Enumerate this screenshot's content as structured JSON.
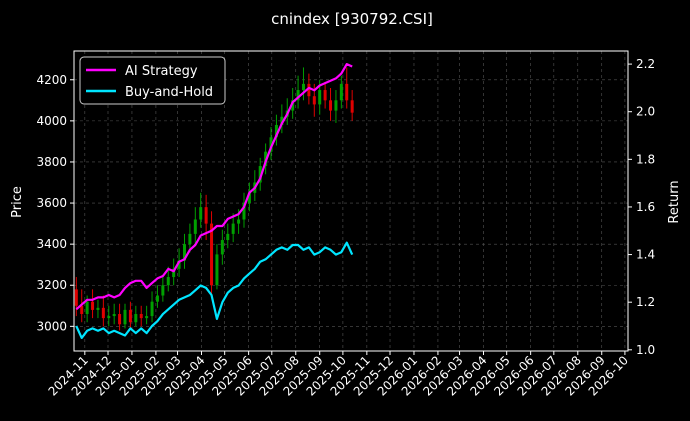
{
  "chart_data": {
    "type": "line",
    "title": "cnindex [930792.CSI]",
    "ylabel_left": "Price",
    "ylabel_right": "Return",
    "ylim_left": [
      2880,
      4340
    ],
    "ylim_right": [
      0.995,
      2.255
    ],
    "yticks_left": [
      3000,
      3200,
      3400,
      3600,
      3800,
      4000,
      4200
    ],
    "yticks_right": [
      1.0,
      1.2,
      1.4,
      1.6,
      1.8,
      2.0,
      2.2
    ],
    "ytick_labels_left": [
      "3000",
      "3200",
      "3400",
      "3600",
      "3800",
      "4000",
      "4200"
    ],
    "ytick_labels_right": [
      "1.0",
      "1.2",
      "1.4",
      "1.6",
      "1.8",
      "2.0",
      "2.2"
    ],
    "xlim": [
      "2024-10-18",
      "2026-10-05"
    ],
    "xtick_labels": [
      "2024-11",
      "2024-12",
      "2025-01",
      "2025-02",
      "2025-03",
      "2025-04",
      "2025-05",
      "2025-06",
      "2025-07",
      "2025-08",
      "2025-09",
      "2025-10",
      "2025-11",
      "2025-12",
      "2026-01",
      "2026-02",
      "2026-03",
      "2026-04",
      "2026-05",
      "2026-06",
      "2026-07",
      "2026-08",
      "2026-09",
      "2026-10"
    ],
    "grid": true,
    "legend": {
      "placement": "top-left",
      "entries": [
        "AI Strategy",
        "Buy-and-Hold"
      ]
    },
    "colors": {
      "ai_strategy": "#ff00ff",
      "buy_and_hold": "#00e5ff",
      "up": "#00a000",
      "down": "#e00000"
    },
    "series": [
      {
        "name": "AI Strategy",
        "axis": "right",
        "x": [
          "2024-10-21",
          "2024-10-28",
          "2024-11-04",
          "2024-11-11",
          "2024-11-18",
          "2024-11-25",
          "2024-12-02",
          "2024-12-09",
          "2024-12-16",
          "2024-12-23",
          "2024-12-30",
          "2025-01-06",
          "2025-01-13",
          "2025-01-20",
          "2025-01-27",
          "2025-02-03",
          "2025-02-10",
          "2025-02-17",
          "2025-02-24",
          "2025-03-03",
          "2025-03-10",
          "2025-03-17",
          "2025-03-24",
          "2025-03-31",
          "2025-04-07",
          "2025-04-14",
          "2025-04-21",
          "2025-04-28",
          "2025-05-05",
          "2025-05-12",
          "2025-05-19",
          "2025-05-26",
          "2025-06-02",
          "2025-06-09",
          "2025-06-16",
          "2025-06-23",
          "2025-06-30",
          "2025-07-07",
          "2025-07-14",
          "2025-07-21",
          "2025-07-28",
          "2025-08-04",
          "2025-08-11",
          "2025-08-18",
          "2025-08-25",
          "2025-09-01",
          "2025-09-08",
          "2025-09-15",
          "2025-09-22",
          "2025-09-29",
          "2025-10-06",
          "2025-10-13"
        ],
        "values": [
          1.17,
          1.19,
          1.21,
          1.21,
          1.22,
          1.22,
          1.23,
          1.22,
          1.23,
          1.26,
          1.28,
          1.29,
          1.29,
          1.26,
          1.28,
          1.3,
          1.31,
          1.34,
          1.33,
          1.37,
          1.38,
          1.42,
          1.44,
          1.48,
          1.49,
          1.5,
          1.52,
          1.52,
          1.55,
          1.56,
          1.57,
          1.6,
          1.66,
          1.68,
          1.72,
          1.79,
          1.85,
          1.9,
          1.95,
          1.99,
          2.04,
          2.06,
          2.08,
          2.1,
          2.09,
          2.11,
          2.12,
          2.13,
          2.14,
          2.16,
          2.2,
          2.19
        ]
      },
      {
        "name": "Buy-and-Hold",
        "axis": "right",
        "x": [
          "2024-10-21",
          "2024-10-28",
          "2024-11-04",
          "2024-11-11",
          "2024-11-18",
          "2024-11-25",
          "2024-12-02",
          "2024-12-09",
          "2024-12-16",
          "2024-12-23",
          "2024-12-30",
          "2025-01-06",
          "2025-01-13",
          "2025-01-20",
          "2025-01-27",
          "2025-02-03",
          "2025-02-10",
          "2025-02-17",
          "2025-02-24",
          "2025-03-03",
          "2025-03-10",
          "2025-03-17",
          "2025-03-24",
          "2025-03-31",
          "2025-04-07",
          "2025-04-14",
          "2025-04-21",
          "2025-04-28",
          "2025-05-05",
          "2025-05-12",
          "2025-05-19",
          "2025-05-26",
          "2025-06-02",
          "2025-06-09",
          "2025-06-16",
          "2025-06-23",
          "2025-06-30",
          "2025-07-07",
          "2025-07-14",
          "2025-07-21",
          "2025-07-28",
          "2025-08-04",
          "2025-08-11",
          "2025-08-18",
          "2025-08-25",
          "2025-09-01",
          "2025-09-08",
          "2025-09-15",
          "2025-09-22",
          "2025-09-29",
          "2025-10-06",
          "2025-10-13"
        ],
        "values": [
          1.1,
          1.05,
          1.08,
          1.09,
          1.08,
          1.09,
          1.07,
          1.08,
          1.07,
          1.06,
          1.09,
          1.07,
          1.09,
          1.07,
          1.1,
          1.12,
          1.15,
          1.17,
          1.19,
          1.21,
          1.22,
          1.23,
          1.25,
          1.27,
          1.26,
          1.23,
          1.13,
          1.2,
          1.24,
          1.26,
          1.27,
          1.3,
          1.32,
          1.34,
          1.37,
          1.38,
          1.4,
          1.42,
          1.43,
          1.42,
          1.44,
          1.44,
          1.42,
          1.43,
          1.4,
          1.41,
          1.43,
          1.42,
          1.4,
          1.41,
          1.45,
          1.4
        ]
      }
    ],
    "candlesticks": {
      "axis": "left",
      "x": [
        "2024-10-21",
        "2024-10-28",
        "2024-11-04",
        "2024-11-11",
        "2024-11-18",
        "2024-11-25",
        "2024-12-02",
        "2024-12-09",
        "2024-12-16",
        "2024-12-23",
        "2024-12-30",
        "2025-01-06",
        "2025-01-13",
        "2025-01-20",
        "2025-01-27",
        "2025-02-03",
        "2025-02-10",
        "2025-02-17",
        "2025-02-24",
        "2025-03-03",
        "2025-03-10",
        "2025-03-17",
        "2025-03-24",
        "2025-03-31",
        "2025-04-07",
        "2025-04-14",
        "2025-04-21",
        "2025-04-28",
        "2025-05-05",
        "2025-05-12",
        "2025-05-19",
        "2025-05-26",
        "2025-06-02",
        "2025-06-09",
        "2025-06-16",
        "2025-06-23",
        "2025-06-30",
        "2025-07-07",
        "2025-07-14",
        "2025-07-21",
        "2025-07-28",
        "2025-08-04",
        "2025-08-11",
        "2025-08-18",
        "2025-08-25",
        "2025-09-01",
        "2025-09-08",
        "2025-09-15",
        "2025-09-22",
        "2025-09-29",
        "2025-10-06",
        "2025-10-13"
      ],
      "open": [
        3180,
        3100,
        3060,
        3120,
        3080,
        3090,
        3040,
        3050,
        3060,
        3010,
        3080,
        3020,
        3060,
        3040,
        3050,
        3120,
        3150,
        3200,
        3240,
        3280,
        3320,
        3400,
        3450,
        3520,
        3580,
        3500,
        3200,
        3350,
        3420,
        3450,
        3500,
        3520,
        3600,
        3650,
        3700,
        3780,
        3850,
        3920,
        3980,
        4020,
        4050,
        4100,
        4150,
        4180,
        4120,
        4080,
        4150,
        4100,
        4050,
        4100,
        4180,
        4100
      ],
      "close": [
        3100,
        3060,
        3120,
        3080,
        3090,
        3040,
        3050,
        3060,
        3010,
        3080,
        3020,
        3060,
        3040,
        3050,
        3120,
        3150,
        3200,
        3240,
        3280,
        3320,
        3400,
        3450,
        3520,
        3580,
        3500,
        3200,
        3350,
        3420,
        3450,
        3500,
        3520,
        3600,
        3650,
        3700,
        3780,
        3850,
        3920,
        3980,
        4020,
        4050,
        4100,
        4150,
        4180,
        4120,
        4080,
        4150,
        4100,
        4050,
        4100,
        4180,
        4100,
        4040
      ],
      "high": [
        3240,
        3180,
        3150,
        3180,
        3130,
        3150,
        3100,
        3110,
        3110,
        3110,
        3120,
        3100,
        3100,
        3100,
        3170,
        3200,
        3250,
        3290,
        3330,
        3380,
        3450,
        3500,
        3580,
        3650,
        3640,
        3560,
        3400,
        3470,
        3500,
        3550,
        3570,
        3650,
        3700,
        3760,
        3820,
        3890,
        3970,
        4030,
        4080,
        4110,
        4160,
        4220,
        4260,
        4230,
        4180,
        4200,
        4190,
        4160,
        4150,
        4220,
        4260,
        4150
      ],
      "low": [
        3050,
        3020,
        3020,
        3040,
        3040,
        3000,
        3000,
        3010,
        2980,
        2990,
        2990,
        3000,
        3000,
        3010,
        3020,
        3090,
        3120,
        3170,
        3200,
        3240,
        3280,
        3360,
        3400,
        3480,
        3420,
        3150,
        3180,
        3300,
        3380,
        3410,
        3450,
        3480,
        3560,
        3610,
        3660,
        3740,
        3810,
        3880,
        3940,
        3980,
        4010,
        4060,
        4100,
        4080,
        4020,
        4030,
        4060,
        4000,
        3990,
        4060,
        4060,
        4000
      ]
    }
  }
}
